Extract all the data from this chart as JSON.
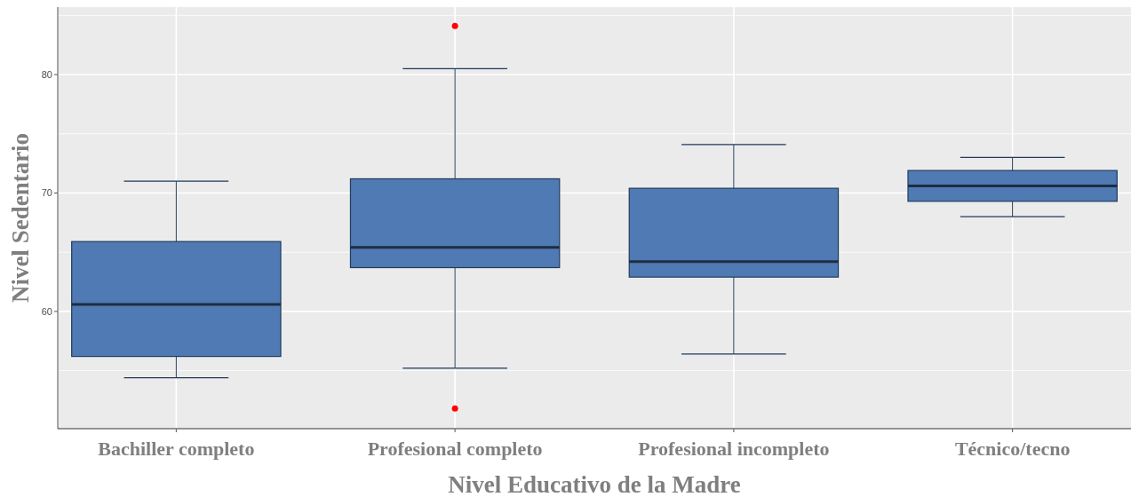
{
  "chart_data": {
    "type": "box",
    "xlabel": "Nivel Educativo de la Madre",
    "ylabel": "Nivel Sedentario",
    "categories": [
      "Bachiller completo",
      "Profesional completo",
      "Profesional incompleto",
      "Técnico/tecno"
    ],
    "color": "#4f7ab3",
    "boxes": [
      {
        "low": 54.4,
        "q1": 56.2,
        "median": 60.6,
        "q3": 65.9,
        "high": 71.0
      },
      {
        "low": 55.2,
        "q1": 63.7,
        "median": 65.4,
        "q3": 71.2,
        "high": 80.5,
        "outliers": [
          84.1,
          51.8
        ]
      },
      {
        "low": 56.4,
        "q1": 62.9,
        "median": 64.2,
        "q3": 70.4,
        "high": 74.1
      },
      {
        "low": 68.0,
        "q1": 69.3,
        "median": 70.6,
        "q3": 71.9,
        "high": 73.0
      }
    ],
    "ylim": [
      50.1,
      85.7
    ],
    "yticks": [
      60,
      70,
      80
    ],
    "grid": true
  }
}
